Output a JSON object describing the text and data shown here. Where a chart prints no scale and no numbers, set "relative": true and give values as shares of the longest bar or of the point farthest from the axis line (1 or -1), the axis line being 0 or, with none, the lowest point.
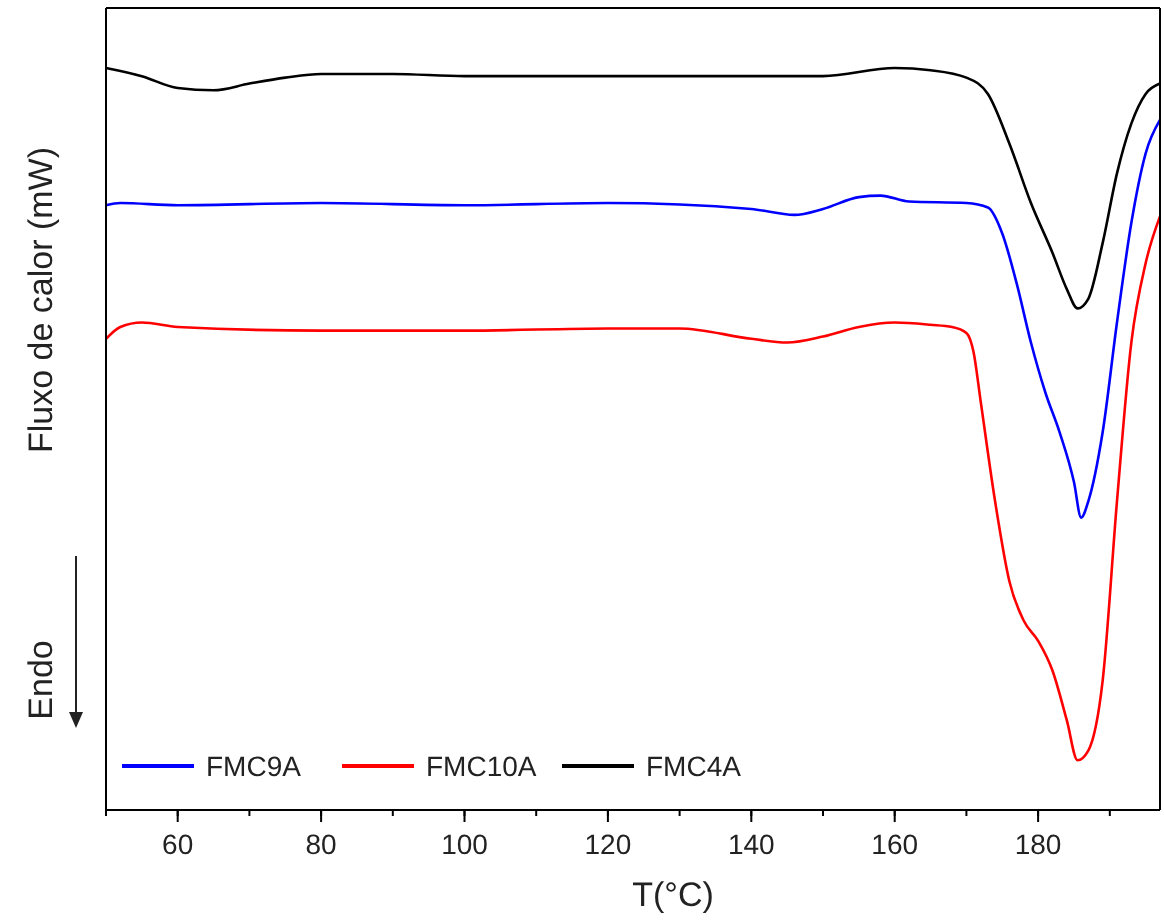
{
  "chart_data": {
    "type": "line",
    "relative": true,
    "xlabel": "T(°C)",
    "ylabel": "Fluxo de calor (mW)",
    "annotations": [
      "Endo"
    ],
    "xlim": [
      50,
      197
    ],
    "xticks": [
      60,
      80,
      100,
      120,
      140,
      160,
      180
    ],
    "legend": "bottom left",
    "marker": "none",
    "line_style": "solid",
    "grid": false,
    "series": [
      {
        "name": "FMC9A",
        "color": "#0000ff",
        "x": [
          50,
          52,
          60,
          80,
          100,
          120,
          140,
          146,
          150,
          155,
          158,
          162,
          170,
          173,
          175,
          177,
          179,
          181,
          183,
          185,
          186,
          187,
          189,
          191,
          193,
          195,
          197
        ],
        "values": [
          0.815,
          0.818,
          0.815,
          0.818,
          0.815,
          0.818,
          0.81,
          0.802,
          0.81,
          0.826,
          0.828,
          0.82,
          0.818,
          0.812,
          0.777,
          0.71,
          0.63,
          0.563,
          0.509,
          0.442,
          0.394,
          0.416,
          0.509,
          0.657,
          0.791,
          0.885,
          0.93
        ]
      },
      {
        "name": "FMC10A",
        "color": "#ff0000",
        "x": [
          50,
          52,
          55,
          60,
          80,
          100,
          120,
          130,
          140,
          145,
          150,
          155,
          160,
          165,
          168,
          170,
          171,
          172,
          174,
          176,
          178,
          180,
          182,
          184,
          185.5,
          187,
          189,
          191,
          193,
          195,
          197
        ],
        "values": [
          0.635,
          0.651,
          0.657,
          0.651,
          0.646,
          0.646,
          0.649,
          0.649,
          0.635,
          0.63,
          0.638,
          0.651,
          0.657,
          0.654,
          0.651,
          0.643,
          0.617,
          0.55,
          0.416,
          0.308,
          0.255,
          0.228,
          0.188,
          0.121,
          0.067,
          0.08,
          0.174,
          0.416,
          0.63,
          0.737,
          0.8
        ]
      },
      {
        "name": "FMC4A",
        "color": "#000000",
        "x": [
          50,
          55,
          60,
          65,
          70,
          75,
          80,
          90,
          100,
          120,
          140,
          150,
          160,
          165,
          170,
          173,
          176,
          179,
          182,
          184,
          185.5,
          187,
          189,
          191,
          193,
          195,
          197
        ],
        "values": [
          1.0,
          0.989,
          0.973,
          0.97,
          0.979,
          0.987,
          0.992,
          0.992,
          0.989,
          0.989,
          0.989,
          0.989,
          1.0,
          0.997,
          0.987,
          0.965,
          0.898,
          0.818,
          0.751,
          0.702,
          0.676,
          0.689,
          0.764,
          0.858,
          0.925,
          0.965,
          0.979
        ]
      }
    ]
  }
}
